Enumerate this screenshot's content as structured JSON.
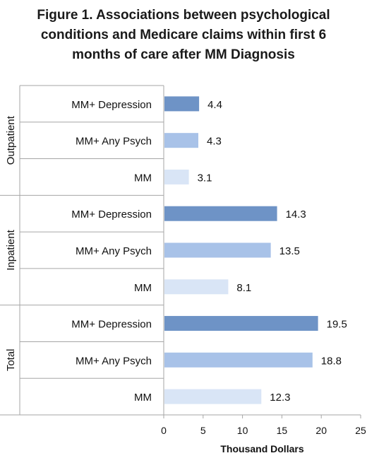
{
  "chart_data": {
    "type": "bar",
    "orientation": "horizontal",
    "title_lines": [
      "Figure 1. Associations between psychological",
      "conditions and Medicare claims within first 6",
      "months of care after MM Diagnosis"
    ],
    "xlabel": "Thousand Dollars",
    "xlim": [
      0,
      25
    ],
    "xticks": [
      "0",
      "5",
      "10",
      "15",
      "20",
      "25"
    ],
    "grid": false,
    "groups": [
      {
        "name": "Outpatient",
        "bars": [
          {
            "label": "MM+ Depression",
            "value": 4.4,
            "value_label": "4.4",
            "color": "#6e93c6"
          },
          {
            "label": "MM+ Any Psych",
            "value": 4.3,
            "value_label": "4.3",
            "color": "#a8c2e8"
          },
          {
            "label": "MM",
            "value": 3.1,
            "value_label": "3.1",
            "color": "#d9e5f6"
          }
        ]
      },
      {
        "name": "Inpatient",
        "bars": [
          {
            "label": "MM+ Depression",
            "value": 14.3,
            "value_label": "14.3",
            "color": "#6e93c6"
          },
          {
            "label": "MM+ Any Psych",
            "value": 13.5,
            "value_label": "13.5",
            "color": "#a8c2e8"
          },
          {
            "label": "MM",
            "value": 8.1,
            "value_label": "8.1",
            "color": "#d9e5f6"
          }
        ]
      },
      {
        "name": "Total",
        "bars": [
          {
            "label": "MM+ Depression",
            "value": 19.5,
            "value_label": "19.5",
            "color": "#6e93c6"
          },
          {
            "label": "MM+ Any Psych",
            "value": 18.8,
            "value_label": "18.8",
            "color": "#a8c2e8"
          },
          {
            "label": "MM",
            "value": 12.3,
            "value_label": "12.3",
            "color": "#d9e5f6"
          }
        ]
      }
    ]
  }
}
